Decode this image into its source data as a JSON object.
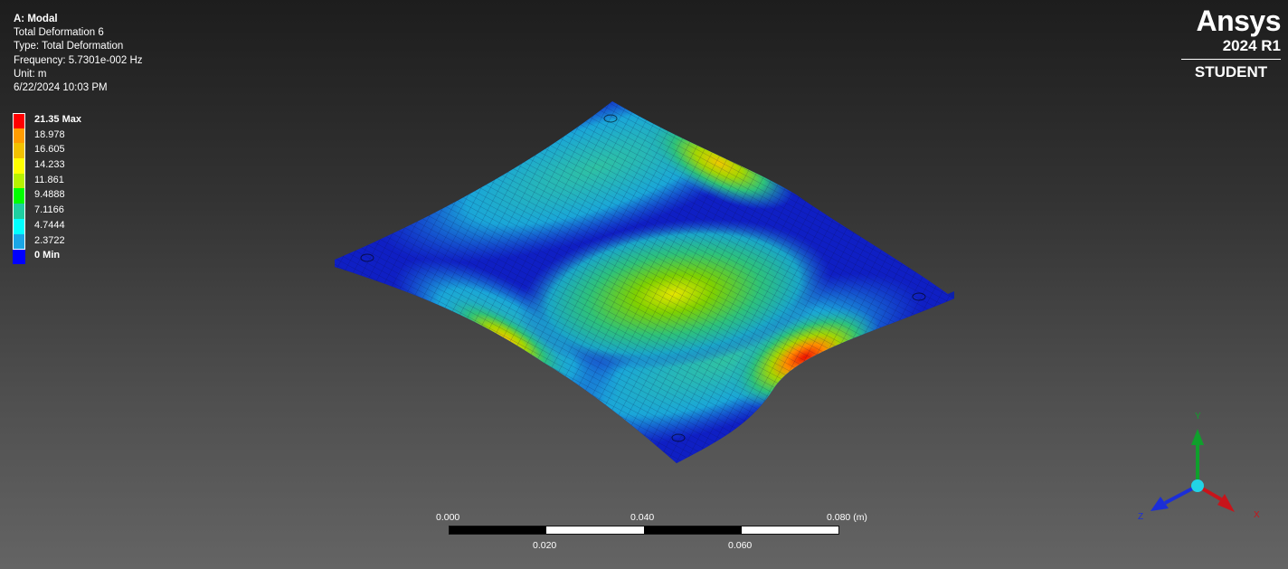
{
  "info": {
    "title": "A: Modal",
    "result": "Total Deformation 6",
    "type": "Type: Total Deformation",
    "frequency": "Frequency: 5.7301e-002 Hz",
    "unit": "Unit: m",
    "date": "6/22/2024 10:03 PM"
  },
  "legend": [
    {
      "label": "21.35 Max",
      "color": "#ff0000",
      "bold": true
    },
    {
      "label": "18.978",
      "color": "#ff9c00",
      "bold": false
    },
    {
      "label": "16.605",
      "color": "#f2c100",
      "bold": false
    },
    {
      "label": "14.233",
      "color": "#ffff00",
      "bold": false
    },
    {
      "label": "11.861",
      "color": "#b7f200",
      "bold": false
    },
    {
      "label": "9.4888",
      "color": "#00ff00",
      "bold": false
    },
    {
      "label": "7.1166",
      "color": "#1ecfa0",
      "bold": false
    },
    {
      "label": "4.7444",
      "color": "#00ffff",
      "bold": false
    },
    {
      "label": "2.3722",
      "color": "#1aa6e6",
      "bold": false
    },
    {
      "label": "0 Min",
      "color": "#0000ff",
      "bold": true
    }
  ],
  "logo": {
    "brand": "Ansys",
    "version": "2024 R1",
    "edition": "STUDENT"
  },
  "scale": {
    "top_labels": [
      "0.000",
      "0.040",
      "0.080 (m)"
    ],
    "bottom_labels": [
      "0.020",
      "0.060"
    ]
  },
  "triad": {
    "x": "X",
    "y": "Y",
    "z": "Z"
  }
}
